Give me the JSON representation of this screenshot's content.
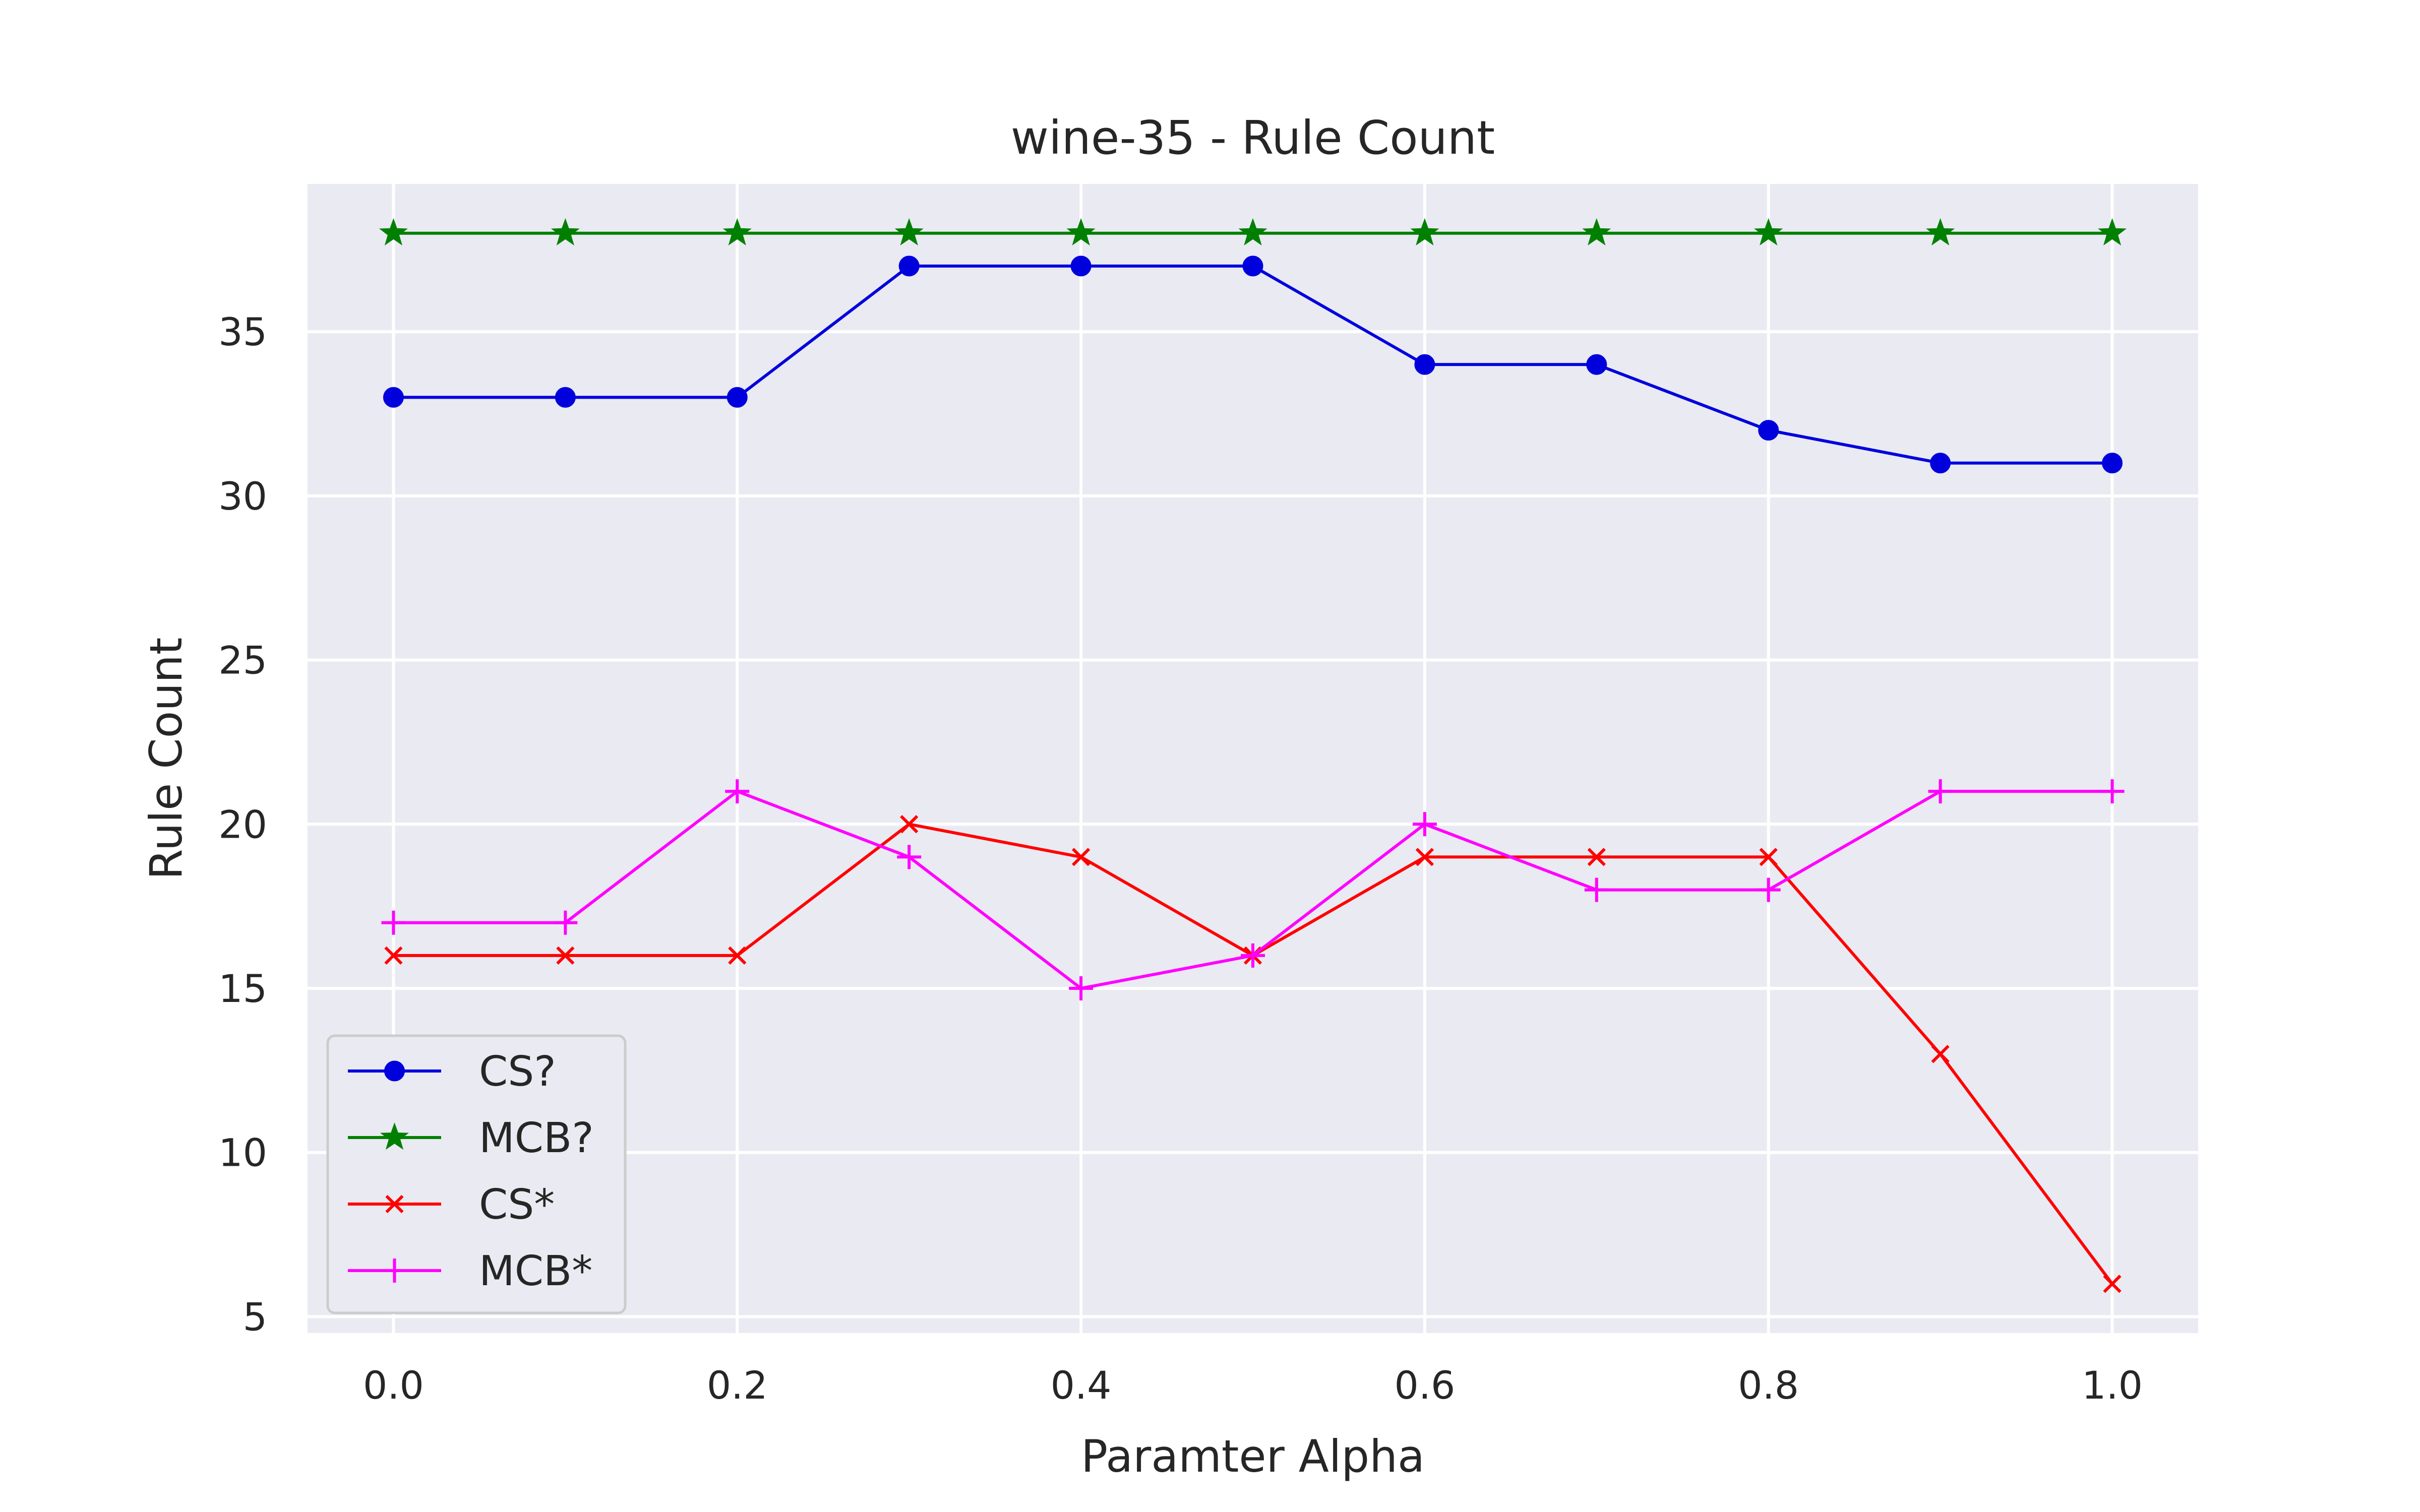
{
  "chart_data": {
    "type": "line",
    "title": "wine-35 - Rule Count",
    "xlabel": "Paramter Alpha",
    "ylabel": "Rule Count",
    "x": [
      0.0,
      0.1,
      0.2,
      0.3,
      0.4,
      0.5,
      0.6,
      0.7,
      0.8,
      0.9,
      1.0
    ],
    "xlim": [
      -0.05,
      1.05
    ],
    "ylim": [
      4.5,
      39.5
    ],
    "xticks": [
      0.0,
      0.2,
      0.4,
      0.6,
      0.8,
      1.0
    ],
    "xtick_labels": [
      "0.0",
      "0.2",
      "0.4",
      "0.6",
      "0.8",
      "1.0"
    ],
    "yticks": [
      5,
      10,
      15,
      20,
      25,
      30,
      35
    ],
    "ytick_labels": [
      "5",
      "10",
      "15",
      "20",
      "25",
      "30",
      "35"
    ],
    "grid": true,
    "background": "#eaeaf2",
    "legend_position": "lower-left",
    "series": [
      {
        "name": "CS?",
        "color": "#0000dd",
        "marker": "circle",
        "values": [
          33,
          33,
          33,
          37,
          37,
          37,
          34,
          34,
          32,
          31,
          31
        ]
      },
      {
        "name": "MCB?",
        "color": "#008000",
        "marker": "star",
        "values": [
          38,
          38,
          38,
          38,
          38,
          38,
          38,
          38,
          38,
          38,
          38
        ]
      },
      {
        "name": "CS*",
        "color": "#ff0000",
        "marker": "x",
        "values": [
          16,
          16,
          16,
          20,
          19,
          16,
          19,
          19,
          19,
          13,
          6
        ]
      },
      {
        "name": "MCB*",
        "color": "#ff00ff",
        "marker": "plus",
        "values": [
          17,
          17,
          21,
          19,
          15,
          16,
          20,
          18,
          18,
          21,
          21
        ]
      }
    ]
  }
}
